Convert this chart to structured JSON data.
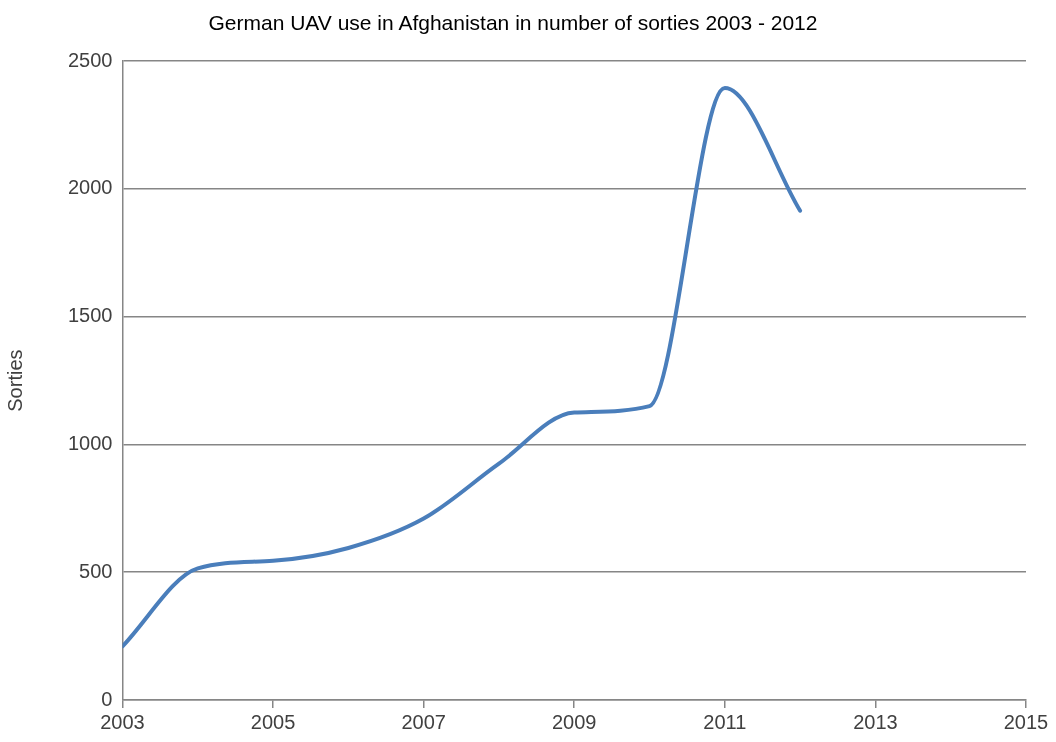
{
  "chart_data": {
    "type": "line",
    "title": "German UAV use in Afghanistan in number of sorties 2003 - 2012",
    "ylabel": "Sorties",
    "x": [
      2003,
      2004,
      2005,
      2006,
      2007,
      2008,
      2009,
      2010,
      2011,
      2012
    ],
    "series": [
      {
        "color": "#4a7ebb",
        "values": [
          210,
          515,
          545,
          595,
          710,
          925,
          1125,
          1150,
          2395,
          1915
        ]
      }
    ],
    "xlim": [
      2003,
      2015
    ],
    "xticks": [
      2003,
      2005,
      2007,
      2009,
      2011,
      2013,
      2015
    ],
    "ylim": [
      0,
      2500
    ],
    "yticks": [
      0,
      500,
      1000,
      1500,
      2000,
      2500
    ],
    "grid": "y",
    "legend": false,
    "marker": "none",
    "line_style": "solid"
  }
}
